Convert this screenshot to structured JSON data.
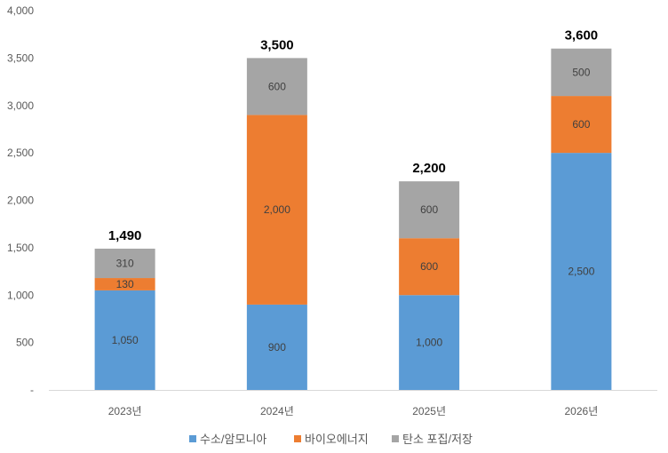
{
  "chart_data": {
    "type": "bar",
    "stacked": true,
    "categories": [
      "2023년",
      "2024년",
      "2025년",
      "2026년"
    ],
    "series": [
      {
        "name": "수소/암모니아",
        "color": "#5B9BD5",
        "values": [
          1050,
          900,
          1000,
          2500
        ],
        "labels": [
          "1,050",
          "900",
          "1,000",
          "2,500"
        ]
      },
      {
        "name": "바이오에너지",
        "color": "#ED7D31",
        "values": [
          130,
          2000,
          600,
          600
        ],
        "labels": [
          "130",
          "2,000",
          "600",
          "600"
        ]
      },
      {
        "name": "탄소 포집/저장",
        "color": "#A5A5A5",
        "values": [
          310,
          600,
          600,
          500
        ],
        "labels": [
          "310",
          "600",
          "600",
          "500"
        ]
      }
    ],
    "totals": [
      "1,490",
      "3,500",
      "2,200",
      "3,600"
    ],
    "ylim": [
      0,
      4000
    ],
    "yticks": [
      0,
      500,
      1000,
      1500,
      2000,
      2500,
      3000,
      3500,
      4000
    ],
    "ytick_labels": [
      "-",
      "500",
      "1,000",
      "1,500",
      "2,000",
      "2,500",
      "3,000",
      "3,500",
      "4,000"
    ],
    "grid": false,
    "legend": "bottom",
    "title": "",
    "xlabel": "",
    "ylabel": ""
  }
}
